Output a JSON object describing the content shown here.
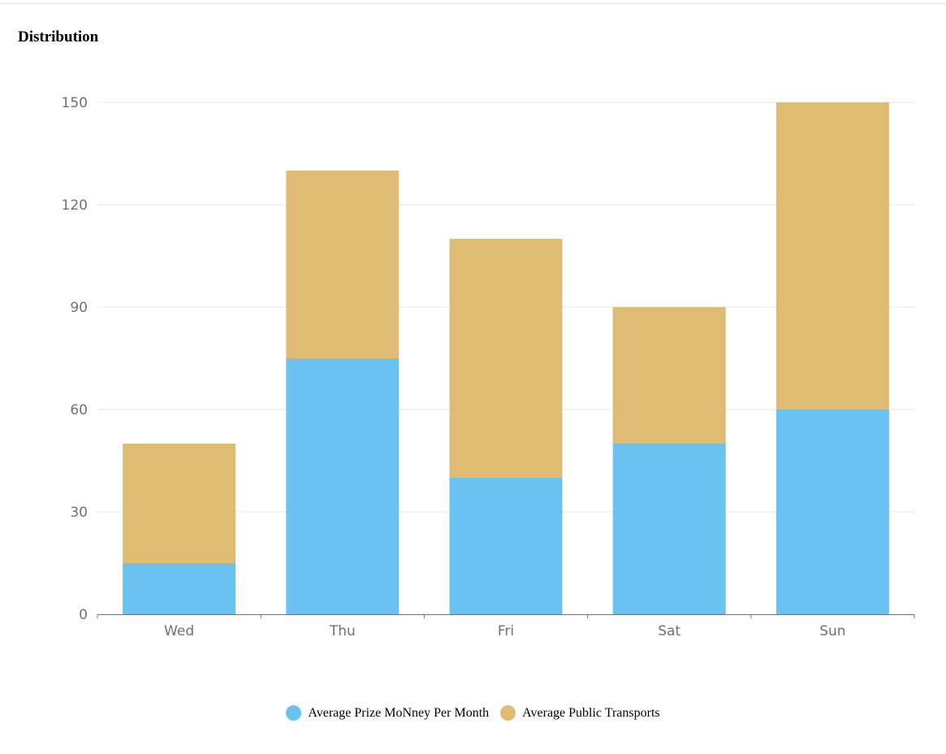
{
  "title": "Distribution",
  "colors": {
    "series_0": "#6ac2f0",
    "series_1": "#e0bb74",
    "grid": "#e3e6ee",
    "axis": "#6e7079",
    "tick_text": "#6e7079"
  },
  "chart_data": {
    "type": "bar",
    "stacked": true,
    "categories": [
      "Wed",
      "Thu",
      "Fri",
      "Sat",
      "Sun"
    ],
    "series": [
      {
        "name": "Average Prize MoNney Per Month",
        "values": [
          15,
          75,
          40,
          50,
          60
        ]
      },
      {
        "name": "Average Public Transports",
        "values": [
          35,
          55,
          70,
          40,
          90
        ]
      }
    ],
    "ylim": [
      0,
      150
    ],
    "yticks": [
      0,
      30,
      60,
      90,
      120,
      150
    ],
    "grid": true,
    "legend_position": "bottom-center"
  }
}
